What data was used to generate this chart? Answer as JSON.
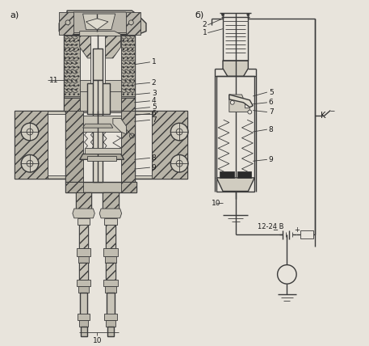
{
  "bg_color": "#e8e4dc",
  "line_color": "#3a3a3a",
  "label_color": "#1a1a1a",
  "title_a": "a)",
  "title_b": "б)",
  "label_K": "K",
  "label_voltage": "12-24 В",
  "figsize": [
    4.57,
    4.28
  ],
  "dpi": 100,
  "hatch_color": "#b0a898",
  "fill_main": "#d0ccc0",
  "fill_inner": "#e8e4dc",
  "fill_dark": "#909080"
}
